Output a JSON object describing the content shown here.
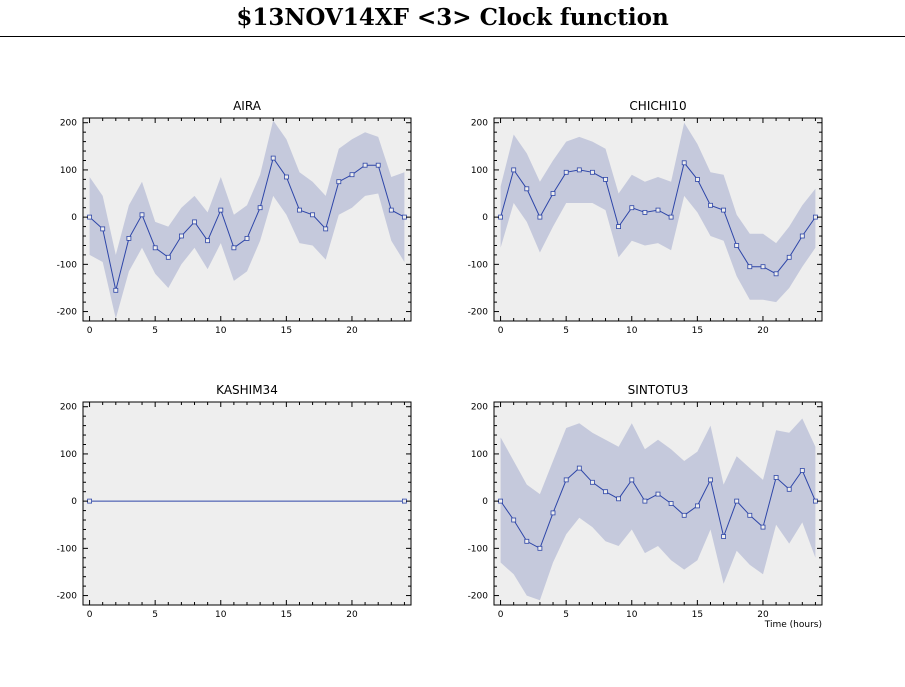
{
  "page": {
    "title": "$13NOV14XF <3>  Clock function"
  },
  "colors": {
    "panel_bg": "#eeeeee",
    "band": "#c5c9dc",
    "line": "#2e46a8",
    "axis": "#000000"
  },
  "chart_data": [
    {
      "type": "line",
      "title": "AIRA",
      "xlim": [
        -0.5,
        24.5
      ],
      "ylim": [
        -220,
        210
      ],
      "xticks": [
        0,
        5,
        10,
        15,
        20
      ],
      "yticks": [
        -200,
        -100,
        0,
        100,
        200
      ],
      "xlabel": "",
      "x": [
        0,
        1,
        2,
        3,
        4,
        5,
        6,
        7,
        8,
        9,
        10,
        11,
        12,
        13,
        14,
        15,
        16,
        17,
        18,
        19,
        20,
        21,
        22,
        23,
        24
      ],
      "y": [
        0,
        -25,
        -155,
        -45,
        5,
        -65,
        -85,
        -40,
        -10,
        -50,
        15,
        -65,
        -45,
        20,
        125,
        85,
        15,
        5,
        -25,
        75,
        90,
        110,
        110,
        15,
        0
      ],
      "upper": [
        85,
        45,
        -80,
        25,
        75,
        -10,
        -20,
        20,
        45,
        10,
        85,
        5,
        25,
        90,
        205,
        165,
        95,
        75,
        45,
        145,
        165,
        180,
        170,
        85,
        95
      ],
      "lower": [
        -80,
        -95,
        -215,
        -115,
        -65,
        -120,
        -150,
        -100,
        -65,
        -110,
        -55,
        -135,
        -115,
        -50,
        45,
        5,
        -55,
        -60,
        -90,
        5,
        20,
        45,
        50,
        -50,
        -95
      ]
    },
    {
      "type": "line",
      "title": "CHICHI10",
      "xlim": [
        -0.5,
        24.5
      ],
      "ylim": [
        -220,
        210
      ],
      "xticks": [
        0,
        5,
        10,
        15,
        20
      ],
      "yticks": [
        -200,
        -100,
        0,
        100,
        200
      ],
      "xlabel": "",
      "x": [
        0,
        1,
        2,
        3,
        4,
        5,
        6,
        7,
        8,
        9,
        10,
        11,
        12,
        13,
        14,
        15,
        16,
        17,
        18,
        19,
        20,
        21,
        22,
        23,
        24
      ],
      "y": [
        0,
        100,
        60,
        0,
        50,
        95,
        100,
        95,
        80,
        -20,
        20,
        10,
        15,
        0,
        115,
        80,
        25,
        15,
        -60,
        -105,
        -105,
        -120,
        -85,
        -40,
        0
      ],
      "upper": [
        65,
        175,
        135,
        75,
        120,
        160,
        170,
        160,
        145,
        50,
        90,
        75,
        85,
        75,
        200,
        155,
        95,
        90,
        5,
        -35,
        -35,
        -55,
        -20,
        25,
        60
      ],
      "lower": [
        -65,
        30,
        -10,
        -75,
        -20,
        30,
        30,
        30,
        15,
        -85,
        -50,
        -60,
        -55,
        -70,
        45,
        10,
        -40,
        -50,
        -125,
        -175,
        -175,
        -180,
        -150,
        -105,
        -65
      ]
    },
    {
      "type": "line",
      "title": "KASHIM34",
      "xlim": [
        -0.5,
        24.5
      ],
      "ylim": [
        -220,
        210
      ],
      "xticks": [
        0,
        5,
        10,
        15,
        20
      ],
      "yticks": [
        -200,
        -100,
        0,
        100,
        200
      ],
      "xlabel": "",
      "x": [
        0,
        24
      ],
      "y": [
        0,
        0
      ],
      "upper": [],
      "lower": []
    },
    {
      "type": "line",
      "title": "SINTOTU3",
      "xlim": [
        -0.5,
        24.5
      ],
      "ylim": [
        -220,
        210
      ],
      "xticks": [
        0,
        5,
        10,
        15,
        20
      ],
      "yticks": [
        -200,
        -100,
        0,
        100,
        200
      ],
      "xlabel": "Time (hours)",
      "x": [
        0,
        1,
        2,
        3,
        4,
        5,
        6,
        7,
        8,
        9,
        10,
        11,
        12,
        13,
        14,
        15,
        16,
        17,
        18,
        19,
        20,
        21,
        22,
        23,
        24
      ],
      "y": [
        0,
        -40,
        -85,
        -100,
        -25,
        45,
        70,
        40,
        20,
        5,
        45,
        0,
        15,
        -5,
        -30,
        -10,
        45,
        -75,
        0,
        -30,
        -55,
        50,
        25,
        65,
        0
      ],
      "upper": [
        135,
        85,
        35,
        15,
        85,
        155,
        165,
        145,
        130,
        115,
        165,
        110,
        130,
        110,
        85,
        105,
        160,
        35,
        95,
        70,
        45,
        150,
        145,
        175,
        115
      ],
      "lower": [
        -130,
        -155,
        -200,
        -210,
        -130,
        -70,
        -35,
        -55,
        -85,
        -95,
        -60,
        -110,
        -95,
        -125,
        -145,
        -125,
        -60,
        -175,
        -105,
        -135,
        -155,
        -50,
        -90,
        -45,
        -120
      ]
    }
  ]
}
